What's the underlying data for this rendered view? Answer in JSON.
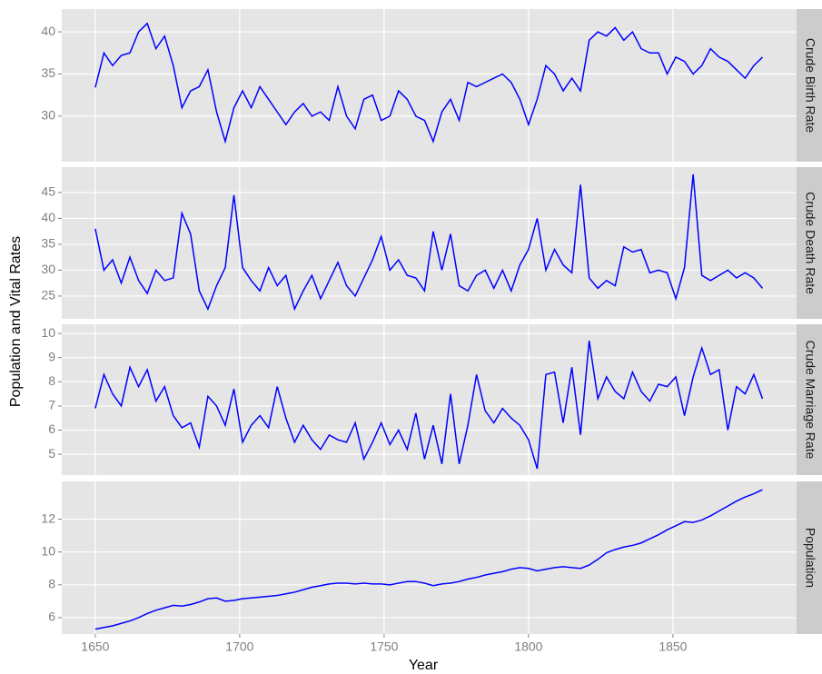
{
  "chart_data": {
    "type": "line",
    "xlabel": "Year",
    "ylabel": "Population and Vital Rates",
    "color": "#0000ff",
    "grid": true,
    "xlim": [
      1638.4,
      1892.8
    ],
    "xticks": [
      1650,
      1700,
      1750,
      1800,
      1850
    ],
    "x": [
      1650,
      1653,
      1656,
      1659,
      1662,
      1665,
      1668,
      1671,
      1674,
      1677,
      1680,
      1683,
      1686,
      1689,
      1692,
      1695,
      1698,
      1701,
      1704,
      1707,
      1710,
      1713,
      1716,
      1719,
      1722,
      1725,
      1728,
      1731,
      1734,
      1737,
      1740,
      1743,
      1746,
      1749,
      1752,
      1755,
      1758,
      1761,
      1764,
      1767,
      1770,
      1773,
      1776,
      1779,
      1782,
      1785,
      1788,
      1791,
      1794,
      1797,
      1800,
      1803,
      1806,
      1809,
      1812,
      1815,
      1818,
      1821,
      1824,
      1827,
      1830,
      1833,
      1836,
      1839,
      1842,
      1845,
      1848,
      1851,
      1854,
      1857,
      1860,
      1863,
      1866,
      1869,
      1872,
      1875,
      1878,
      1881
    ],
    "panels": [
      {
        "name": "Crude Birth Rate",
        "ylim": [
          24.6,
          42.7
        ],
        "yticks": [
          30,
          35,
          40
        ],
        "values": [
          33.4,
          37.5,
          36,
          37.2,
          37.5,
          40,
          41,
          38,
          39.5,
          36,
          31,
          33,
          33.5,
          35.5,
          30.5,
          27,
          31,
          33,
          31,
          33.5,
          32,
          30.5,
          29,
          30.5,
          31.5,
          30,
          30.5,
          29.5,
          33.5,
          30,
          28.5,
          32,
          32.5,
          29.5,
          30,
          33,
          32,
          30,
          29.5,
          27,
          30.5,
          32,
          29.5,
          34,
          33.5,
          34,
          34.5,
          35,
          34,
          32,
          29,
          32,
          36,
          35,
          33,
          34.5,
          33,
          39,
          40,
          39.5,
          40.5,
          39,
          40,
          38,
          37.5,
          37.5,
          35,
          37,
          36.5,
          35,
          36,
          38,
          37,
          36.5,
          35.5,
          34.5,
          36,
          37
        ]
      },
      {
        "name": "Crude Death Rate",
        "ylim": [
          20.6,
          49.9
        ],
        "yticks": [
          25,
          30,
          35,
          40,
          45
        ],
        "values": [
          38,
          30,
          32,
          27.5,
          32.5,
          28,
          25.5,
          30,
          28,
          28.5,
          41,
          37,
          26,
          22.5,
          27,
          30.5,
          44.5,
          30.5,
          28,
          26,
          30.5,
          27,
          29,
          22.5,
          26,
          29,
          24.5,
          28,
          31.5,
          27,
          25,
          28.5,
          32,
          36.5,
          30,
          32,
          29,
          28.5,
          26,
          37.5,
          30,
          37,
          27,
          26,
          29,
          30,
          26.5,
          30,
          26,
          31,
          34,
          40,
          30,
          34,
          31,
          29.5,
          46.5,
          28.5,
          26.5,
          28,
          27,
          34.5,
          33.5,
          34,
          29.5,
          30,
          29.5,
          24.5,
          30.5,
          48.5,
          29,
          28,
          29,
          30,
          28.5,
          29.5,
          28.5,
          26.5
        ]
      },
      {
        "name": "Crude Marriage Rate",
        "ylim": [
          4.14,
          10.38
        ],
        "yticks": [
          5,
          6,
          7,
          8,
          9,
          10
        ],
        "values": [
          6.9,
          8.3,
          7.5,
          7,
          8.6,
          7.8,
          8.5,
          7.2,
          7.8,
          6.6,
          6.1,
          6.3,
          5.3,
          7.4,
          7,
          6.2,
          7.7,
          5.5,
          6.2,
          6.6,
          6.1,
          7.8,
          6.5,
          5.5,
          6.2,
          5.6,
          5.2,
          5.8,
          5.6,
          5.5,
          6.3,
          4.8,
          5.5,
          6.3,
          5.4,
          6,
          5.2,
          6.7,
          4.8,
          6.2,
          4.6,
          7.5,
          4.6,
          6.2,
          8.3,
          6.8,
          6.3,
          6.9,
          6.5,
          6.2,
          5.6,
          4.4,
          8.3,
          8.4,
          6.3,
          8.6,
          5.8,
          9.7,
          7.3,
          8.2,
          7.6,
          7.3,
          8.4,
          7.6,
          7.2,
          7.9,
          7.8,
          8.2,
          6.6,
          8.2,
          9.4,
          8.3,
          8.5,
          6,
          7.8,
          7.5,
          8.3,
          7.3
        ]
      },
      {
        "name": "Population",
        "ylim": [
          5.0,
          14.3
        ],
        "yticks": [
          6,
          8,
          10,
          12
        ],
        "values": [
          5.3,
          5.4,
          5.5,
          5.65,
          5.8,
          6.0,
          6.25,
          6.45,
          6.6,
          6.75,
          6.7,
          6.8,
          6.95,
          7.15,
          7.2,
          7.0,
          7.05,
          7.15,
          7.2,
          7.25,
          7.3,
          7.35,
          7.45,
          7.55,
          7.7,
          7.85,
          7.95,
          8.05,
          8.1,
          8.1,
          8.05,
          8.1,
          8.05,
          8.05,
          8.0,
          8.1,
          8.2,
          8.2,
          8.1,
          7.95,
          8.05,
          8.1,
          8.2,
          8.35,
          8.45,
          8.6,
          8.7,
          8.8,
          8.95,
          9.05,
          9.0,
          8.85,
          8.95,
          9.05,
          9.1,
          9.05,
          9.0,
          9.2,
          9.55,
          9.95,
          10.15,
          10.3,
          10.4,
          10.55,
          10.8,
          11.05,
          11.35,
          11.6,
          11.85,
          11.8,
          11.95,
          12.2,
          12.5,
          12.8,
          13.1,
          13.35,
          13.55,
          13.8
        ]
      }
    ]
  }
}
